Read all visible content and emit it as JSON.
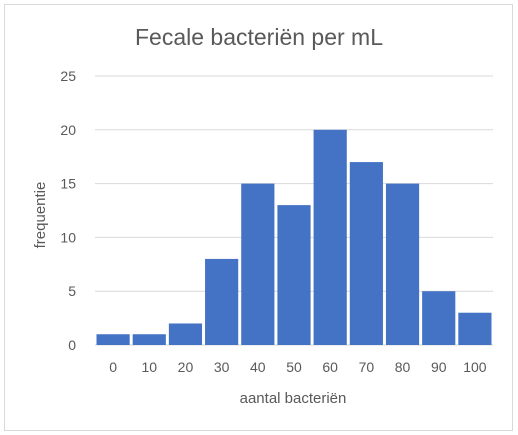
{
  "chart_data": {
    "type": "bar",
    "title": "Fecale bacteriën per mL",
    "xlabel": "aantal bacteriën",
    "ylabel": "frequentie",
    "categories": [
      "0",
      "10",
      "20",
      "30",
      "40",
      "50",
      "60",
      "70",
      "80",
      "90",
      "100"
    ],
    "values": [
      1,
      1,
      2,
      8,
      15,
      13,
      20,
      17,
      15,
      5,
      3
    ],
    "y_ticks": [
      "0",
      "5",
      "10",
      "15",
      "20",
      "25"
    ],
    "ylim": [
      0,
      25
    ],
    "grid": true,
    "legend": "none",
    "bar_color": "#4472c4",
    "grid_color": "#d9d9d9",
    "text_color": "#595959"
  }
}
